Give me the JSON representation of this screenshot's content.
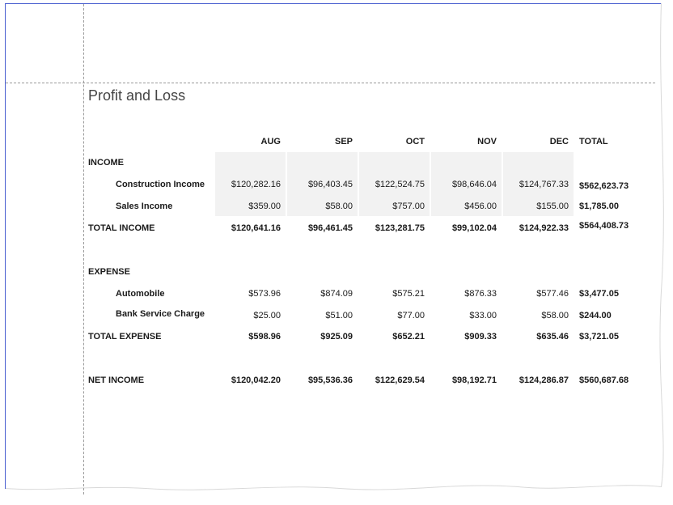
{
  "report": {
    "title": "Profit and Loss",
    "columns": [
      "AUG",
      "SEP",
      "OCT",
      "NOV",
      "DEC"
    ],
    "total_header": "TOTAL",
    "income": {
      "section_label": "INCOME",
      "rows": [
        {
          "label": "Construction Income",
          "values": [
            "$120,282.16",
            "$96,403.45",
            "$122,524.75",
            "$98,646.04",
            "$124,767.33"
          ],
          "total": "$562,623.73"
        },
        {
          "label": "Sales Income",
          "values": [
            "$359.00",
            "$58.00",
            "$757.00",
            "$456.00",
            "$155.00"
          ],
          "total": "$1,785.00"
        }
      ],
      "total_label": "TOTAL INCOME",
      "total_values": [
        "$120,641.16",
        "$96,461.45",
        "$123,281.75",
        "$99,102.04",
        "$124,922.33"
      ],
      "total_total": "$564,408.73"
    },
    "expense": {
      "section_label": "EXPENSE",
      "rows": [
        {
          "label": "Automobile",
          "values": [
            "$573.96",
            "$874.09",
            "$575.21",
            "$876.33",
            "$577.46"
          ],
          "total": "$3,477.05"
        },
        {
          "label": "Bank Service Charge",
          "values": [
            "$25.00",
            "$51.00",
            "$77.00",
            "$33.00",
            "$58.00"
          ],
          "total": "$244.00"
        }
      ],
      "total_label": "TOTAL EXPENSE",
      "total_values": [
        "$598.96",
        "$925.09",
        "$652.21",
        "$909.33",
        "$635.46"
      ],
      "total_total": "$3,721.05"
    },
    "net": {
      "label": "NET INCOME",
      "values": [
        "$120,042.20",
        "$95,536.36",
        "$122,629.54",
        "$98,192.71",
        "$124,286.87"
      ],
      "total": "$560,687.68"
    }
  }
}
